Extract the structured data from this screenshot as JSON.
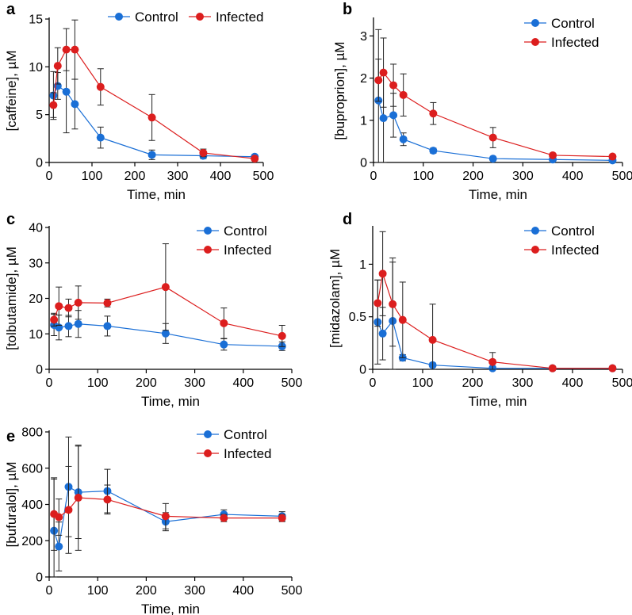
{
  "chart_data": [
    {
      "type": "line",
      "panel": "a",
      "xlabel": "Time, min",
      "ylabel": "[caffeine], µM",
      "xlim": [
        0,
        500
      ],
      "ylim": [
        0,
        15
      ],
      "xticks": [
        0,
        100,
        200,
        300,
        400,
        500
      ],
      "yticks": [
        0,
        5,
        10,
        15
      ],
      "legend_position": "top",
      "legend_layout": "horizontal",
      "x": [
        10,
        20,
        40,
        60,
        120,
        240,
        360,
        480
      ],
      "series": [
        {
          "name": "Control",
          "color": "#1a6fd6",
          "values": [
            7.0,
            8.0,
            7.4,
            6.1,
            2.6,
            0.8,
            0.7,
            0.6
          ],
          "errors": [
            2.5,
            1.4,
            4.3,
            2.6,
            1.1,
            0.5,
            0.3,
            0.2
          ]
        },
        {
          "name": "Infected",
          "color": "#dc1e1e",
          "values": [
            6.0,
            10.1,
            11.8,
            11.8,
            7.9,
            4.7,
            1.0,
            0.4
          ],
          "errors": [
            1.3,
            1.9,
            2.2,
            3.1,
            1.9,
            2.4,
            0.4,
            0.2
          ]
        }
      ]
    },
    {
      "type": "line",
      "panel": "b",
      "xlabel": "Time, min",
      "ylabel": "[buproprion], µM",
      "xlim": [
        0,
        500
      ],
      "ylim": [
        0,
        3.4
      ],
      "xticks": [
        0,
        100,
        200,
        300,
        400,
        500
      ],
      "yticks": [
        0,
        1,
        2,
        3
      ],
      "legend_position": "top-right",
      "legend_layout": "vertical",
      "x": [
        10,
        20,
        40,
        60,
        120,
        240,
        360,
        480
      ],
      "series": [
        {
          "name": "Control",
          "color": "#1a6fd6",
          "values": [
            1.47,
            1.05,
            1.12,
            0.55,
            0.28,
            0.09,
            0.07,
            0.05
          ],
          "errors": [
            1.68,
            1.05,
            0.52,
            0.15,
            0.06,
            0.03,
            0.02,
            0.02
          ]
        },
        {
          "name": "Infected",
          "color": "#dc1e1e",
          "values": [
            1.95,
            2.13,
            1.83,
            1.6,
            1.16,
            0.59,
            0.17,
            0.14
          ],
          "errors": [
            0.5,
            0.82,
            0.5,
            0.5,
            0.26,
            0.24,
            0.04,
            0.04
          ]
        }
      ]
    },
    {
      "type": "line",
      "panel": "c",
      "xlabel": "Time, min",
      "ylabel": "[tolbutamide], µM",
      "xlim": [
        0,
        500
      ],
      "ylim": [
        0,
        40
      ],
      "xticks": [
        0,
        100,
        200,
        300,
        400,
        500
      ],
      "yticks": [
        0,
        10,
        20,
        30,
        40
      ],
      "legend_position": "top-right",
      "legend_layout": "vertical",
      "x": [
        10,
        20,
        40,
        60,
        120,
        240,
        360,
        480
      ],
      "series": [
        {
          "name": "Control",
          "color": "#1a6fd6",
          "values": [
            12.5,
            11.8,
            12.2,
            12.8,
            12.2,
            10.1,
            7.0,
            6.5
          ],
          "errors": [
            3.0,
            3.5,
            3.0,
            3.8,
            2.8,
            2.8,
            1.6,
            1.2
          ]
        },
        {
          "name": "Infected",
          "color": "#dc1e1e",
          "values": [
            14.0,
            17.8,
            17.3,
            18.8,
            18.7,
            23.2,
            13.0,
            9.4
          ],
          "errors": [
            1.8,
            5.4,
            2.5,
            4.7,
            1.1,
            12.2,
            4.3,
            3.0
          ]
        }
      ]
    },
    {
      "type": "line",
      "panel": "d",
      "xlabel": "Time, min",
      "ylabel": "[midazolam], µM",
      "xlim": [
        0,
        500
      ],
      "ylim": [
        0,
        1.35
      ],
      "xticks": [
        0,
        100,
        200,
        300,
        400,
        500
      ],
      "yticks": [
        0.0,
        0.5,
        1.0
      ],
      "legend_position": "top-right",
      "legend_layout": "vertical",
      "x": [
        10,
        20,
        40,
        60,
        120,
        240,
        360,
        480
      ],
      "series": [
        {
          "name": "Control",
          "color": "#1a6fd6",
          "values": [
            0.45,
            0.34,
            0.46,
            0.11,
            0.04,
            0.01,
            0.01,
            0.01
          ],
          "errors": [
            0.4,
            0.25,
            0.6,
            0.03,
            0.02,
            0.005,
            0.005,
            0.005
          ]
        },
        {
          "name": "Infected",
          "color": "#dc1e1e",
          "values": [
            0.63,
            0.91,
            0.62,
            0.47,
            0.28,
            0.07,
            0.01,
            0.01
          ],
          "errors": [
            0.22,
            0.4,
            0.4,
            0.36,
            0.34,
            0.09,
            0.005,
            0.005
          ]
        }
      ]
    },
    {
      "type": "line",
      "panel": "e",
      "xlabel": "Time, min",
      "ylabel": "[bufuralol], µM",
      "xlim": [
        0,
        500
      ],
      "ylim": [
        0,
        800
      ],
      "xticks": [
        0,
        100,
        200,
        300,
        400,
        500
      ],
      "yticks": [
        0,
        200,
        400,
        600,
        800
      ],
      "legend_position": "top-right",
      "legend_layout": "vertical",
      "x": [
        10,
        20,
        40,
        60,
        120,
        240,
        360,
        480
      ],
      "series": [
        {
          "name": "Control",
          "color": "#1a6fd6",
          "values": [
            255,
            168,
            497,
            467,
            474,
            305,
            345,
            335
          ],
          "errors": [
            285,
            135,
            275,
            255,
            120,
            50,
            25,
            25
          ]
        },
        {
          "name": "Infected",
          "color": "#dc1e1e",
          "values": [
            347,
            330,
            370,
            437,
            427,
            335,
            325,
            325
          ],
          "errors": [
            200,
            100,
            240,
            290,
            80,
            70,
            20,
            20
          ]
        }
      ]
    }
  ]
}
